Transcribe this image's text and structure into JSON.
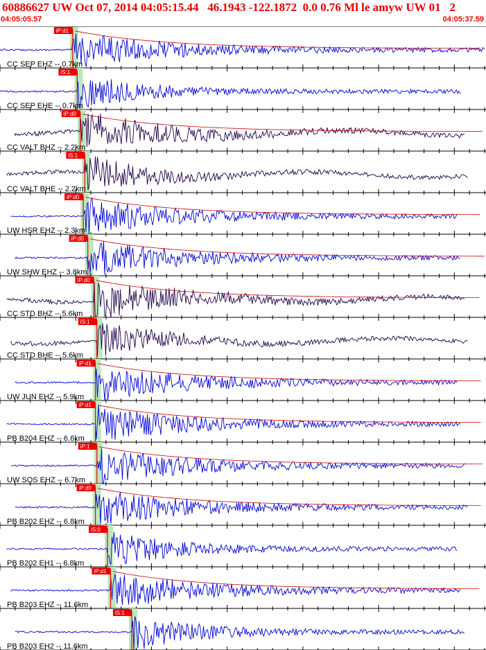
{
  "header": {
    "title": "60886627 UW Oct 07, 2014 04:05:15.44   46.1943 -122.1872  0.0 0.76 Ml le amyw UW 01   2",
    "time_start": "04:05:05.57",
    "time_end": "04:05:37.59"
  },
  "colors": {
    "header_text": "#ee0000",
    "trace_blue": "#0000dd",
    "trace_purple": "#20004a",
    "pick_box": "#ee0000",
    "pick_window": "#bde7bd",
    "coda_line": "#cc0000"
  },
  "chart_data": {
    "type": "seismogram",
    "time_window": [
      "04:05:05.57",
      "04:05:37.59"
    ],
    "grid": true,
    "traces": [
      {
        "label": "CC SEP EHZ -- 0.7km",
        "pick": "iP:d1",
        "pick_time": 4.8,
        "color": "blue",
        "coda": true
      },
      {
        "label": "CC SEP EHE -- 0.7km",
        "pick": "iS:1",
        "pick_time": 5.1,
        "color": "blue",
        "coda": false
      },
      {
        "label": "CC VALT BHZ -- 2.2km",
        "pick": "iP:d0",
        "pick_time": 5.3,
        "color": "purple",
        "coda": true
      },
      {
        "label": "CC VALT BHE -- 2.2km",
        "pick": "iS:1",
        "pick_time": 5.6,
        "color": "purple",
        "coda": false
      },
      {
        "label": "UW HSR EHZ -- 2.3km",
        "pick": "iP:d0",
        "pick_time": 5.5,
        "color": "blue",
        "coda": true
      },
      {
        "label": "UW SHW EHZ -- 3.8km",
        "pick": "iP:d0",
        "pick_time": 5.8,
        "color": "blue",
        "coda": true
      },
      {
        "label": "CC STD BHZ -- 5.6km",
        "pick": "iP:d0",
        "pick_time": 6.2,
        "color": "purple",
        "coda": true
      },
      {
        "label": "CC STD BHE -- 5.6km",
        "pick": "iS:1",
        "pick_time": 6.4,
        "color": "purple",
        "coda": false
      },
      {
        "label": "UW JUN EHZ -- 5.9km",
        "pick": "iP:d1",
        "pick_time": 6.3,
        "color": "blue",
        "coda": true
      },
      {
        "label": "PB B204 EHZ -- 6.6km",
        "pick": "iP:d1",
        "pick_time": 6.3,
        "color": "blue",
        "coda": true
      },
      {
        "label": "UW SOS EHZ -- 6.7km",
        "pick": "iP:1",
        "pick_time": 6.4,
        "color": "blue",
        "coda": true
      },
      {
        "label": "PB B202 EHZ -- 6.8km",
        "pick": "iP:d0",
        "pick_time": 6.3,
        "color": "blue",
        "coda": true
      },
      {
        "label": "PB B202 EH1 -- 6.8km",
        "pick": "iS:0",
        "pick_time": 7.1,
        "color": "blue",
        "coda": false
      },
      {
        "label": "PB B203 EHZ -- 11.6km",
        "pick": "iP:d1",
        "pick_time": 7.3,
        "color": "blue",
        "coda": true
      },
      {
        "label": "PB B203 EH2 -- 11.6km",
        "pick": "iS:1",
        "pick_time": 8.7,
        "color": "blue",
        "coda": false
      }
    ]
  }
}
